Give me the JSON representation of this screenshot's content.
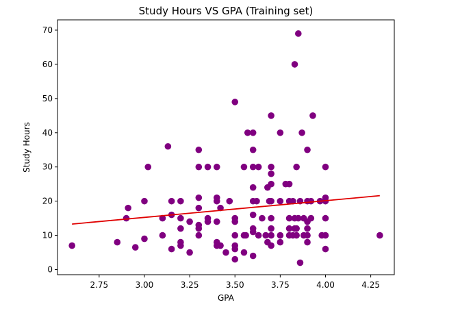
{
  "chart_data": {
    "type": "scatter",
    "title": "Study Hours VS GPA (Training set)",
    "xlabel": "GPA",
    "ylabel": "Study Hours",
    "xlim": [
      2.52,
      4.38
    ],
    "ylim": [
      -1.5,
      73.0
    ],
    "xticks": [
      2.75,
      3.0,
      3.25,
      3.5,
      3.75,
      4.0,
      4.25
    ],
    "xtick_labels": [
      "2.75",
      "3.00",
      "3.25",
      "3.50",
      "3.75",
      "4.00",
      "4.25"
    ],
    "yticks": [
      0,
      10,
      20,
      30,
      40,
      50,
      60,
      70
    ],
    "ytick_labels": [
      "0",
      "10",
      "20",
      "30",
      "40",
      "50",
      "60",
      "70"
    ],
    "grid": false,
    "colors": {
      "points": "#800080",
      "line": "#e00000"
    },
    "regression_line": {
      "x": [
        2.6,
        4.3
      ],
      "y": [
        13.3,
        21.6
      ]
    },
    "series": [
      {
        "x": [
          2.6,
          2.85,
          2.9,
          2.91,
          2.95,
          3.0,
          3.0,
          3.02,
          3.1,
          3.1,
          3.13,
          3.15,
          3.15,
          3.15,
          3.2,
          3.2,
          3.2,
          3.2,
          3.2,
          3.25,
          3.25,
          3.3,
          3.3,
          3.3,
          3.3,
          3.3,
          3.3,
          3.3,
          3.35,
          3.35,
          3.35,
          3.4,
          3.4,
          3.4,
          3.4,
          3.4,
          3.4,
          3.42,
          3.42,
          3.45,
          3.47,
          3.5,
          3.5,
          3.5,
          3.5,
          3.5,
          3.5,
          3.5,
          3.55,
          3.55,
          3.55,
          3.56,
          3.57,
          3.6,
          3.6,
          3.6,
          3.6,
          3.6,
          3.6,
          3.6,
          3.6,
          3.6,
          3.62,
          3.63,
          3.63,
          3.65,
          3.67,
          3.68,
          3.68,
          3.69,
          3.7,
          3.7,
          3.7,
          3.7,
          3.7,
          3.7,
          3.7,
          3.7,
          3.7,
          3.75,
          3.75,
          3.75,
          3.75,
          3.78,
          3.8,
          3.8,
          3.8,
          3.8,
          3.8,
          3.82,
          3.82,
          3.83,
          3.83,
          3.83,
          3.84,
          3.84,
          3.84,
          3.85,
          3.85,
          3.86,
          3.86,
          3.87,
          3.88,
          3.88,
          3.9,
          3.9,
          3.9,
          3.9,
          3.9,
          3.9,
          3.92,
          3.92,
          3.93,
          3.97,
          3.98,
          4.0,
          4.0,
          4.0,
          4.0,
          4.0,
          4.0,
          4.3
        ],
        "y": [
          7,
          8,
          15,
          18,
          6.5,
          9,
          20,
          30,
          10,
          15,
          36,
          6,
          16,
          20,
          7,
          8,
          12,
          15,
          20,
          5,
          14,
          10,
          12,
          13,
          18,
          21,
          30,
          35,
          14,
          15,
          30,
          7,
          8,
          14,
          20,
          21,
          30,
          7,
          18,
          5,
          20,
          3,
          6,
          7,
          10,
          14,
          15,
          49,
          5,
          10,
          30,
          10,
          40,
          4,
          11,
          12,
          16,
          20,
          24,
          30,
          35,
          40,
          20,
          10,
          30,
          15,
          10,
          8,
          24,
          20,
          7,
          10,
          12,
          15,
          20,
          25,
          28,
          30,
          45,
          8,
          10,
          20,
          40,
          25,
          10,
          15,
          20,
          25,
          12,
          10,
          20,
          12,
          15,
          60,
          10,
          12,
          30,
          15,
          69,
          2,
          20,
          40,
          10,
          15,
          8,
          10,
          12,
          14,
          20,
          35,
          15,
          20,
          45,
          20,
          10,
          6,
          10,
          15,
          20,
          21,
          30,
          10
        ],
        "marker": "circle",
        "color": "#800080"
      }
    ]
  }
}
